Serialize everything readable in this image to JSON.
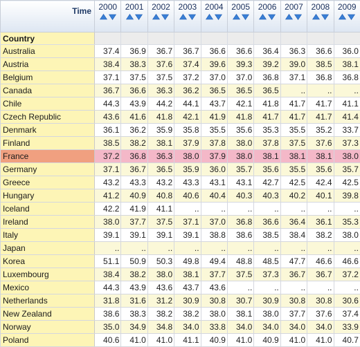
{
  "header": {
    "time_label": "Time",
    "dimension_label": "Country",
    "years": [
      "2000",
      "2001",
      "2002",
      "2003",
      "2004",
      "2005",
      "2006",
      "2007",
      "2008",
      "2009"
    ]
  },
  "colors": {
    "header_bg": "#dde6f2",
    "country_bg": "#fdf5b6",
    "row_alt_bg": "#fbf8d8",
    "highlight_country_bg": "#f0a080",
    "highlight_row_bg": "#f4b8c8",
    "sort_icon": "#3a7fd5"
  },
  "icons": {
    "sort_ascending": "sort-ascending-icon",
    "sort_descending": "sort-descending-icon"
  },
  "highlighted_row": "France",
  "rows": [
    {
      "country": "Australia",
      "values": [
        "37.4",
        "36.9",
        "36.7",
        "36.7",
        "36.6",
        "36.6",
        "36.4",
        "36.3",
        "36.6",
        "36.0"
      ]
    },
    {
      "country": "Austria",
      "values": [
        "38.4",
        "38.3",
        "37.6",
        "37.4",
        "39.6",
        "39.3",
        "39.2",
        "39.0",
        "38.5",
        "38.1"
      ]
    },
    {
      "country": "Belgium",
      "values": [
        "37.1",
        "37.5",
        "37.5",
        "37.2",
        "37.0",
        "37.0",
        "36.8",
        "37.1",
        "36.8",
        "36.8"
      ]
    },
    {
      "country": "Canada",
      "values": [
        "36.7",
        "36.6",
        "36.3",
        "36.2",
        "36.5",
        "36.5",
        "36.5",
        "..",
        "..",
        ".."
      ]
    },
    {
      "country": "Chile",
      "values": [
        "44.3",
        "43.9",
        "44.2",
        "44.1",
        "43.7",
        "42.1",
        "41.8",
        "41.7",
        "41.7",
        "41.1"
      ]
    },
    {
      "country": "Czech Republic",
      "values": [
        "43.6",
        "41.6",
        "41.8",
        "42.1",
        "41.9",
        "41.8",
        "41.7",
        "41.7",
        "41.7",
        "41.4"
      ]
    },
    {
      "country": "Denmark",
      "values": [
        "36.1",
        "36.2",
        "35.9",
        "35.8",
        "35.5",
        "35.6",
        "35.3",
        "35.5",
        "35.2",
        "33.7"
      ]
    },
    {
      "country": "Finland",
      "values": [
        "38.5",
        "38.2",
        "38.1",
        "37.9",
        "37.8",
        "38.0",
        "37.8",
        "37.5",
        "37.6",
        "37.3"
      ]
    },
    {
      "country": "France",
      "values": [
        "37.2",
        "36.8",
        "36.3",
        "38.0",
        "37.9",
        "38.0",
        "38.1",
        "38.1",
        "38.1",
        "38.0"
      ]
    },
    {
      "country": "Germany",
      "values": [
        "37.1",
        "36.7",
        "36.5",
        "35.9",
        "36.0",
        "35.7",
        "35.6",
        "35.5",
        "35.6",
        "35.7"
      ]
    },
    {
      "country": "Greece",
      "values": [
        "43.2",
        "43.3",
        "43.2",
        "43.3",
        "43.1",
        "43.1",
        "42.7",
        "42.5",
        "42.4",
        "42.5"
      ]
    },
    {
      "country": "Hungary",
      "values": [
        "41.2",
        "40.9",
        "40.8",
        "40.6",
        "40.4",
        "40.3",
        "40.3",
        "40.2",
        "40.1",
        "39.8"
      ]
    },
    {
      "country": "Iceland",
      "values": [
        "42.2",
        "41.9",
        "41.1",
        "..",
        "..",
        "..",
        "..",
        "..",
        "..",
        ".."
      ]
    },
    {
      "country": "Ireland",
      "values": [
        "38.0",
        "37.7",
        "37.5",
        "37.1",
        "37.0",
        "36.8",
        "36.6",
        "36.4",
        "36.1",
        "35.3"
      ]
    },
    {
      "country": "Italy",
      "values": [
        "39.1",
        "39.1",
        "39.1",
        "39.1",
        "38.8",
        "38.6",
        "38.5",
        "38.4",
        "38.2",
        "38.0"
      ]
    },
    {
      "country": "Japan",
      "values": [
        "..",
        "..",
        "..",
        "..",
        "..",
        "..",
        "..",
        "..",
        "..",
        ".."
      ]
    },
    {
      "country": "Korea",
      "values": [
        "51.1",
        "50.9",
        "50.3",
        "49.8",
        "49.4",
        "48.8",
        "48.5",
        "47.7",
        "46.6",
        "46.6"
      ]
    },
    {
      "country": "Luxembourg",
      "values": [
        "38.4",
        "38.2",
        "38.0",
        "38.1",
        "37.7",
        "37.5",
        "37.3",
        "36.7",
        "36.7",
        "37.2"
      ]
    },
    {
      "country": "Mexico",
      "values": [
        "44.3",
        "43.9",
        "43.6",
        "43.7",
        "43.6",
        "..",
        "..",
        "..",
        "..",
        ".."
      ]
    },
    {
      "country": "Netherlands",
      "values": [
        "31.8",
        "31.6",
        "31.2",
        "30.9",
        "30.8",
        "30.7",
        "30.9",
        "30.8",
        "30.8",
        "30.6"
      ]
    },
    {
      "country": "New Zealand",
      "values": [
        "38.6",
        "38.3",
        "38.2",
        "38.2",
        "38.0",
        "38.1",
        "38.0",
        "37.7",
        "37.6",
        "37.4"
      ]
    },
    {
      "country": "Norway",
      "values": [
        "35.0",
        "34.9",
        "34.8",
        "34.0",
        "33.8",
        "34.0",
        "34.0",
        "34.0",
        "34.0",
        "33.9"
      ]
    },
    {
      "country": "Poland",
      "values": [
        "40.6",
        "41.0",
        "41.0",
        "41.1",
        "40.9",
        "41.0",
        "40.9",
        "41.0",
        "41.0",
        "40.7"
      ]
    }
  ]
}
